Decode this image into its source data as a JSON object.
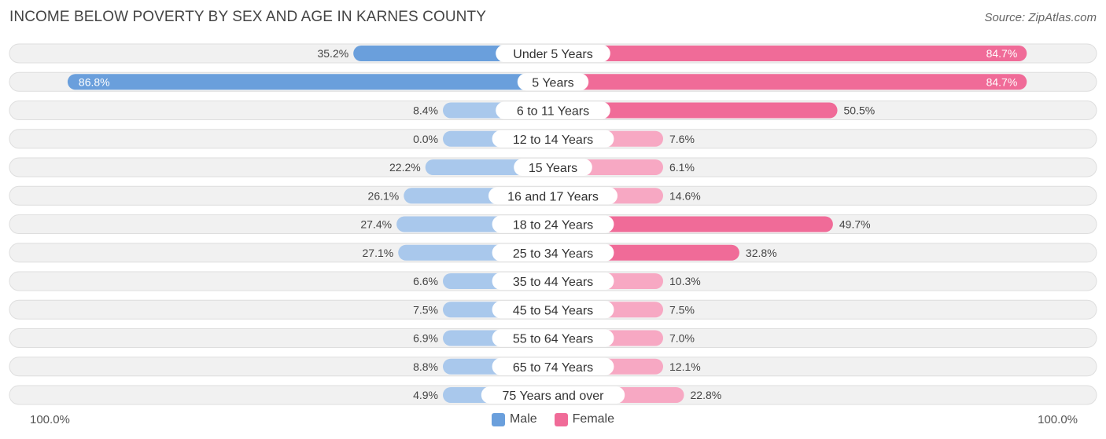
{
  "chart_data": {
    "type": "bar",
    "orientation": "horizontal-diverging",
    "title": "INCOME BELOW POVERTY BY SEX AND AGE IN KARNES COUNTY",
    "source": "Source: ZipAtlas.com",
    "categories": [
      "Under 5 Years",
      "5 Years",
      "6 to 11 Years",
      "12 to 14 Years",
      "15 Years",
      "16 and 17 Years",
      "18 to 24 Years",
      "25 to 34 Years",
      "35 to 44 Years",
      "45 to 54 Years",
      "55 to 64 Years",
      "65 to 74 Years",
      "75 Years and over"
    ],
    "series": [
      {
        "name": "Male",
        "values": [
          35.2,
          86.8,
          8.4,
          0.0,
          22.2,
          26.1,
          27.4,
          27.1,
          6.6,
          7.5,
          6.9,
          8.8,
          4.9
        ],
        "labels": [
          "35.2%",
          "86.8%",
          "8.4%",
          "0.0%",
          "22.2%",
          "26.1%",
          "27.4%",
          "27.1%",
          "6.6%",
          "7.5%",
          "6.9%",
          "8.8%",
          "4.9%"
        ]
      },
      {
        "name": "Female",
        "values": [
          84.7,
          84.7,
          50.5,
          7.6,
          6.1,
          14.6,
          49.7,
          32.8,
          10.3,
          7.5,
          7.0,
          12.1,
          22.8
        ],
        "labels": [
          "84.7%",
          "84.7%",
          "50.5%",
          "7.6%",
          "6.1%",
          "14.6%",
          "49.7%",
          "32.8%",
          "10.3%",
          "7.5%",
          "7.0%",
          "12.1%",
          "22.8%"
        ]
      }
    ],
    "xlim": [
      0,
      100
    ],
    "axis_left_label": "100.0%",
    "axis_right_label": "100.0%",
    "legend": [
      "Male",
      "Female"
    ],
    "legend_position": "bottom-center"
  },
  "colors": {
    "male_strong": "#6a9fdc",
    "male_light": "#a9c8ec",
    "female_strong": "#f06b98",
    "female_light": "#f7a8c3",
    "row_bg": "#f1f1f1",
    "row_border": "#dedede"
  }
}
